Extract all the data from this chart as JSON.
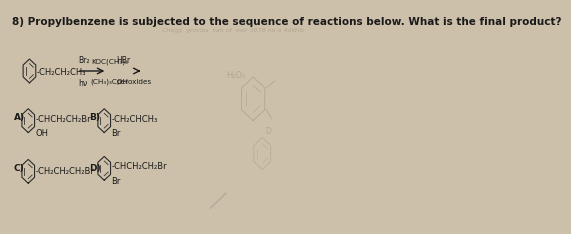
{
  "title": "8) Propylbenzene is subjected to the sequence of reactions below. What is the final product?",
  "title_fontsize": 7.5,
  "bg_color": "#cdc0aa",
  "text_color": "#1a1a1a",
  "sm_chain": "-CH₂CH₂CH₃",
  "reagent1_top": "Br₂",
  "reagent1_bot": "hν",
  "reagent2_top": "KOC(CH₃)₃",
  "reagent2_bot": "(CH₃)₃COH",
  "reagent3_top": "HBr",
  "reagent3_bot": "peroxides",
  "A_label": "A)",
  "A_chain": "-CHCH₂CH₂Br",
  "A_sub": "OH",
  "B_label": "B)",
  "B_chain": "-CH₂CHCH₃",
  "B_sub": "Br",
  "C_label": "C)",
  "C_chain": "-CH₂CH₂CH₂Br",
  "D_label": "D)",
  "D_chain": "-CHCH₂CH₂Br",
  "D_sub": "Br",
  "faded_color": "#9a8f7a",
  "faded_text": "Chegg  gnivlos  sah ot  esir 3678 no a 4dW(b",
  "watermark_text": "H₂O₂"
}
